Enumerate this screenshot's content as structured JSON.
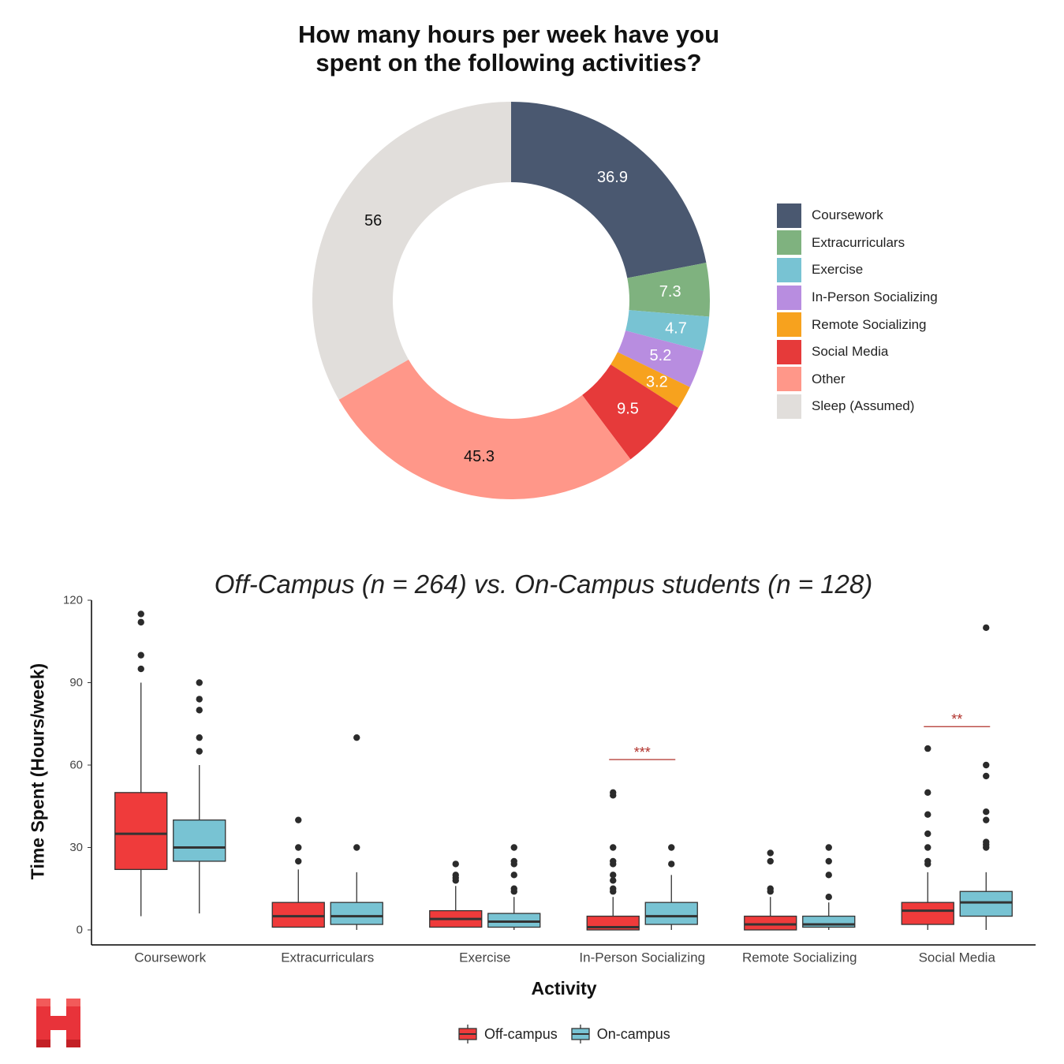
{
  "donut": {
    "title_line1": "How many hours per week have you",
    "title_line2": "spent on the following activities?",
    "chart_data": {
      "type": "pie",
      "variant": "donut",
      "labels": [
        "Coursework",
        "Extracurriculars",
        "Exercise",
        "In-Person Socializing",
        "Remote Socializing",
        "Social Media",
        "Other",
        "Sleep (Assumed)"
      ],
      "values": [
        36.9,
        7.3,
        4.7,
        5.2,
        3.2,
        9.5,
        45.3,
        56
      ],
      "value_labels": [
        "36.9",
        "7.3",
        "4.7",
        "5.2",
        "3.2",
        "9.5",
        "45.3",
        "56"
      ],
      "colors": [
        "#4a5870",
        "#7fb27f",
        "#78c3d3",
        "#b88de0",
        "#f7a21e",
        "#e63a3a",
        "#ff9789",
        "#e1dedb"
      ],
      "label_colors": [
        "#ffffff",
        "#ffffff",
        "#ffffff",
        "#ffffff",
        "#ffffff",
        "#ffffff",
        "#111111",
        "#111111"
      ],
      "legend_position": "right"
    }
  },
  "boxplot": {
    "title": "Off-Campus (n = 264) vs. On-Campus students (n = 128)",
    "xlabel": "Activity",
    "ylabel": "Time Spent (Hours/week)",
    "legend": [
      {
        "label": "Off-campus",
        "color": "#ef3b3b"
      },
      {
        "label": "On-campus",
        "color": "#78c3d3"
      }
    ],
    "chart_data": {
      "type": "boxplot",
      "categories": [
        "Coursework",
        "Extracurriculars",
        "Exercise",
        "In-Person Socializing",
        "Remote Socializing",
        "Social Media"
      ],
      "ylim": [
        0,
        120
      ],
      "yticks": [
        0,
        30,
        60,
        90,
        120
      ],
      "grid": false,
      "series": [
        {
          "name": "Off-campus",
          "color": "#ef3b3b",
          "boxes": [
            {
              "min": 5,
              "q1": 22,
              "median": 35,
              "q3": 50,
              "max": 90,
              "outliers": [
                95,
                100,
                112,
                115
              ]
            },
            {
              "min": 1,
              "q1": 1,
              "median": 5,
              "q3": 10,
              "max": 22,
              "outliers": [
                25,
                30,
                40
              ]
            },
            {
              "min": 1,
              "q1": 1,
              "median": 4,
              "q3": 7,
              "max": 16,
              "outliers": [
                18,
                19,
                20,
                24
              ]
            },
            {
              "min": 0,
              "q1": 0,
              "median": 1,
              "q3": 5,
              "max": 12,
              "outliers": [
                14,
                15,
                18,
                20,
                24,
                25,
                30,
                49,
                50
              ]
            },
            {
              "min": 0,
              "q1": 0,
              "median": 2,
              "q3": 5,
              "max": 12,
              "outliers": [
                14,
                15,
                25,
                28
              ]
            },
            {
              "min": 0,
              "q1": 2,
              "median": 7,
              "q3": 10,
              "max": 21,
              "outliers": [
                24,
                25,
                30,
                35,
                42,
                50,
                66
              ]
            }
          ]
        },
        {
          "name": "On-campus",
          "color": "#78c3d3",
          "boxes": [
            {
              "min": 6,
              "q1": 25,
              "median": 30,
              "q3": 40,
              "max": 60,
              "outliers": [
                65,
                70,
                80,
                84,
                90
              ]
            },
            {
              "min": 0,
              "q1": 2,
              "median": 5,
              "q3": 10,
              "max": 21,
              "outliers": [
                30,
                70
              ]
            },
            {
              "min": 0,
              "q1": 1,
              "median": 3,
              "q3": 6,
              "max": 12,
              "outliers": [
                14,
                15,
                20,
                24,
                25,
                30
              ]
            },
            {
              "min": 0,
              "q1": 2,
              "median": 5,
              "q3": 10,
              "max": 20,
              "outliers": [
                24,
                30
              ]
            },
            {
              "min": 0,
              "q1": 1,
              "median": 2,
              "q3": 5,
              "max": 10,
              "outliers": [
                12,
                20,
                25,
                30
              ]
            },
            {
              "min": 0,
              "q1": 5,
              "median": 10,
              "q3": 14,
              "max": 21,
              "outliers": [
                30,
                31,
                32,
                40,
                43,
                56,
                60,
                110
              ]
            }
          ]
        }
      ],
      "significance": [
        {
          "category": "In-Person Socializing",
          "label": "***",
          "y": 62
        },
        {
          "category": "Social Media",
          "label": "**",
          "y": 74
        }
      ]
    }
  }
}
